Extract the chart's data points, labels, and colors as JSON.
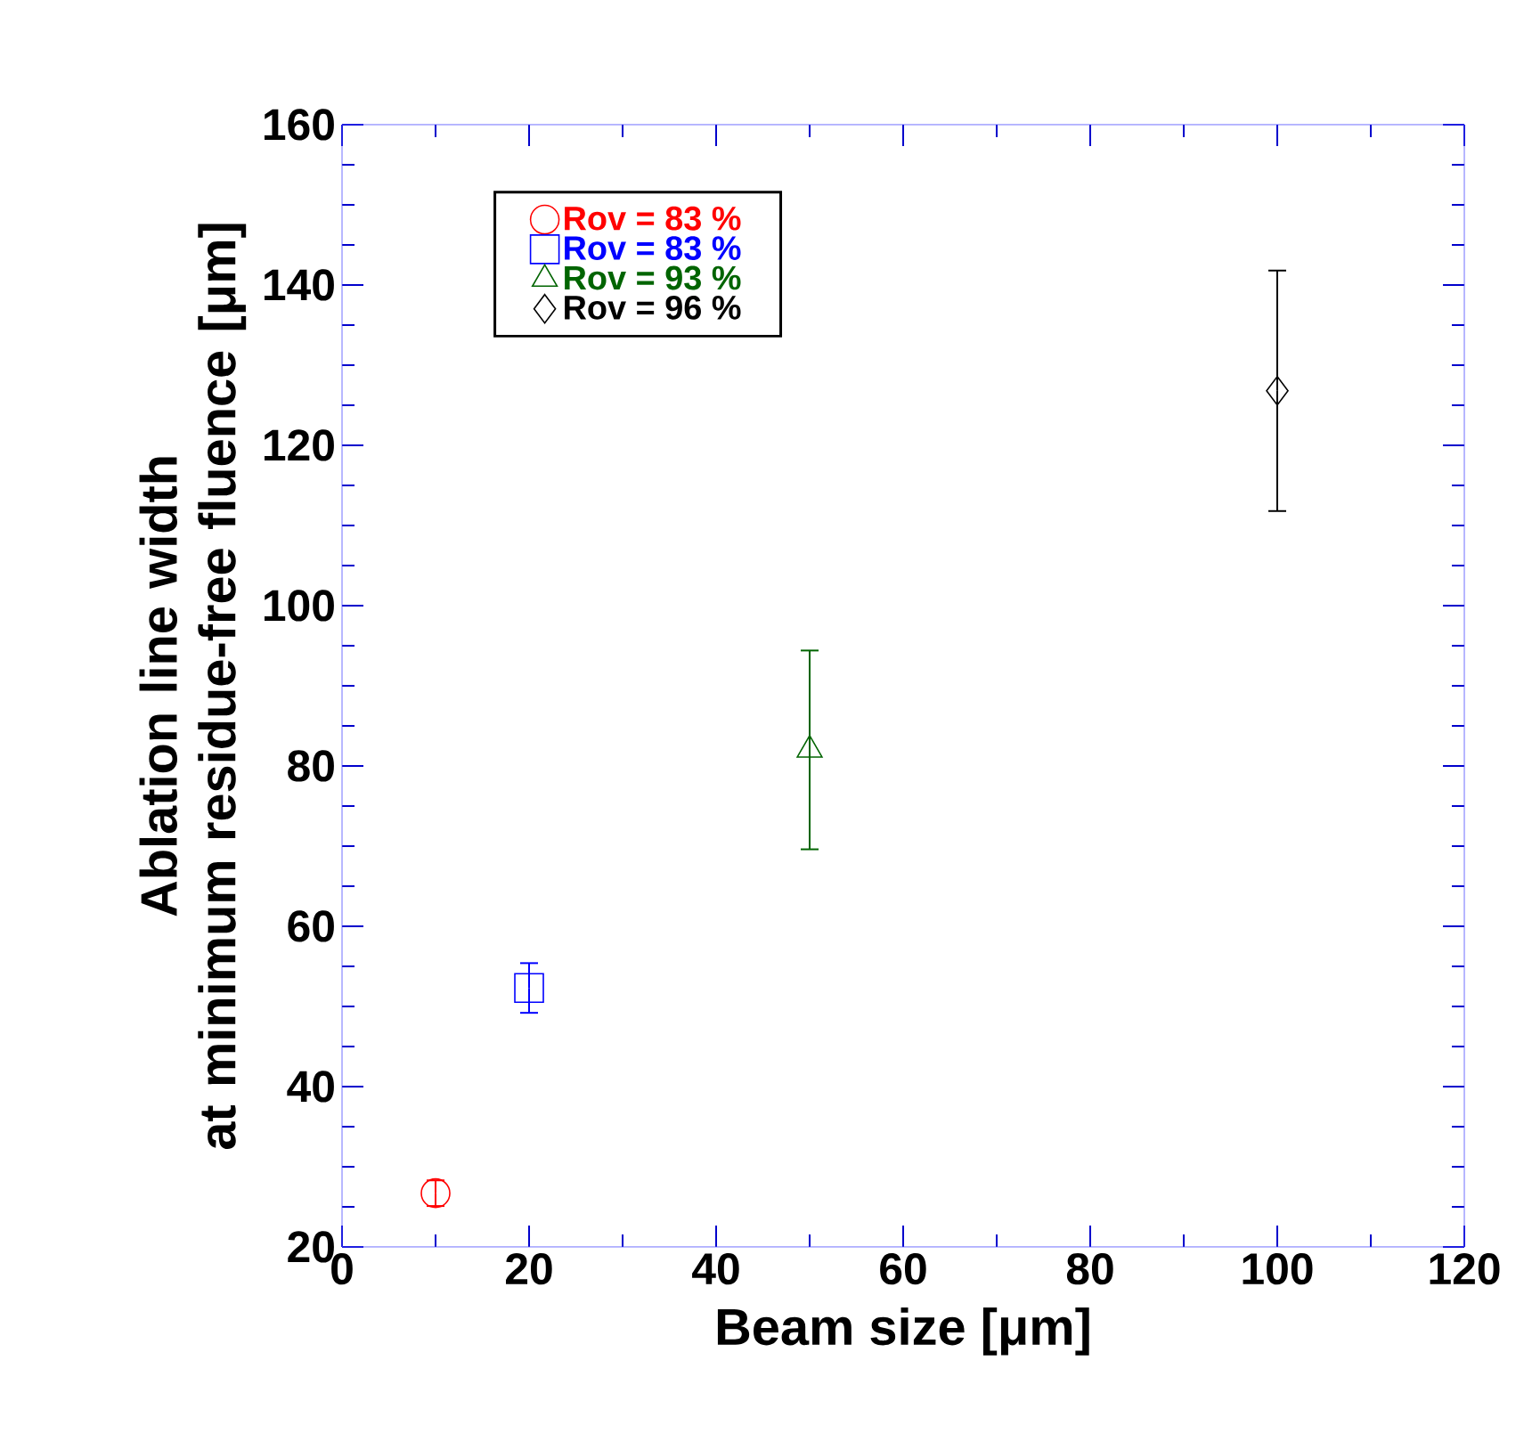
{
  "chart_data": {
    "type": "scatter",
    "xlabel": "Beam size [μm]",
    "ylabel": "Ablation line width\nat minimum residue-free fluence [μm]",
    "xlim": [
      0,
      120
    ],
    "xticks": [
      0,
      20,
      40,
      60,
      80,
      100,
      120
    ],
    "ylim": [
      20,
      160
    ],
    "yticks": [
      20,
      40,
      60,
      80,
      100,
      120,
      140,
      160
    ],
    "legend": "top left",
    "series": [
      {
        "name": "Rov = 83 %",
        "color": "#ff0000",
        "marker": "circle",
        "x": [
          10
        ],
        "values": [
          26.7
        ],
        "errors": [
          1.6
        ]
      },
      {
        "name": "Rov = 83 %",
        "color": "#0000ff",
        "marker": "square",
        "x": [
          20
        ],
        "values": [
          52.3
        ],
        "errors": [
          3.1
        ]
      },
      {
        "name": "Rov = 93 %",
        "color": "#006400",
        "marker": "triangle",
        "x": [
          50
        ],
        "values": [
          82.0
        ],
        "errors": [
          12.4
        ]
      },
      {
        "name": "Rov = 96 %",
        "color": "#000000",
        "marker": "diamond",
        "x": [
          100
        ],
        "values": [
          126.8
        ],
        "errors": [
          15.0
        ]
      }
    ]
  }
}
